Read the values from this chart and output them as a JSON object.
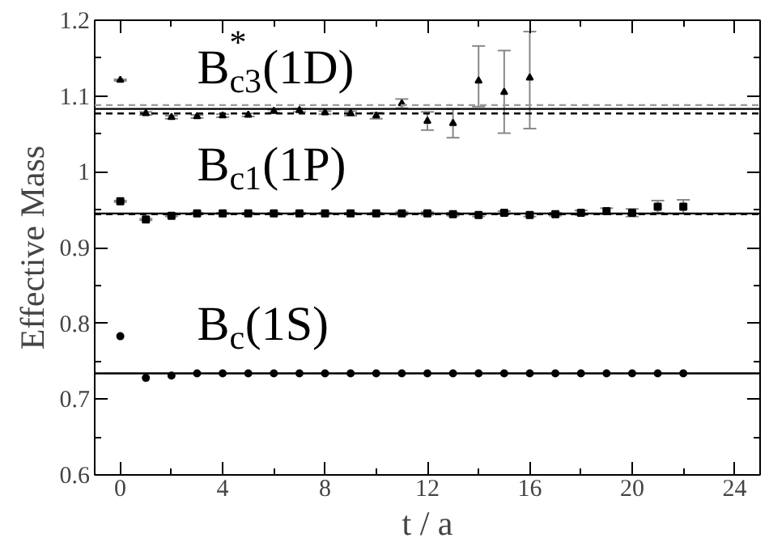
{
  "chart_data": {
    "type": "scatter",
    "xlabel": "t / a",
    "ylabel": "Effective Mass",
    "xlim": [
      -1,
      25
    ],
    "ylim": [
      0.6,
      1.2
    ],
    "xticks": [
      0,
      4,
      8,
      12,
      16,
      20,
      24
    ],
    "yticks": [
      0.6,
      0.7,
      0.8,
      0.9,
      1,
      1.1,
      1.2
    ],
    "grid": false,
    "series": [
      {
        "color": "#000000",
        "marker": "triangle",
        "x": [
          0,
          1,
          2,
          3,
          4,
          5,
          6,
          7,
          8,
          9,
          10,
          11,
          12,
          13,
          14,
          15,
          16
        ],
        "values": [
          1.121,
          1.077,
          1.072,
          1.073,
          1.074,
          1.075,
          1.08,
          1.081,
          1.078,
          1.077,
          1.074,
          1.09,
          1.067,
          1.064,
          1.12,
          1.105,
          1.124
        ],
        "errors": [
          0.001,
          0.002,
          0.002,
          0.002,
          0.002,
          0.002,
          0.002,
          0.002,
          0.002,
          0.003,
          0.004,
          0.006,
          0.012,
          0.019,
          [
            1.086,
            1.166
          ],
          [
            1.051,
            1.16
          ],
          [
            1.057,
            1.185
          ]
        ]
      },
      {
        "color": "#000000",
        "marker": "square",
        "x": [
          0,
          1,
          2,
          3,
          4,
          5,
          6,
          7,
          8,
          9,
          10,
          11,
          12,
          13,
          14,
          15,
          16,
          17,
          18,
          19,
          20,
          21,
          22
        ],
        "values": [
          0.961,
          0.937,
          0.942,
          0.945,
          0.945,
          0.945,
          0.945,
          0.945,
          0.945,
          0.945,
          0.945,
          0.945,
          0.945,
          0.944,
          0.943,
          0.946,
          0.943,
          0.944,
          0.946,
          0.948,
          0.946,
          0.954,
          0.954
        ],
        "errors": [
          0.001,
          0.001,
          0.001,
          0.001,
          0.001,
          0.001,
          0.001,
          0.001,
          0.001,
          0.001,
          0.001,
          0.002,
          0.002,
          0.002,
          0.002,
          0.002,
          0.002,
          0.002,
          0.003,
          0.004,
          0.005,
          0.008,
          0.009
        ]
      },
      {
        "color": "#000000",
        "marker": "circle",
        "x": [
          0,
          1,
          2,
          3,
          4,
          5,
          6,
          7,
          8,
          9,
          10,
          11,
          12,
          13,
          14,
          15,
          16,
          17,
          18,
          19,
          20,
          21,
          22
        ],
        "values": [
          0.783,
          0.728,
          0.731,
          0.734,
          0.734,
          0.734,
          0.734,
          0.734,
          0.734,
          0.734,
          0.734,
          0.734,
          0.734,
          0.734,
          0.734,
          0.734,
          0.734,
          0.734,
          0.734,
          0.734,
          0.734,
          0.734,
          0.734
        ]
      }
    ],
    "ref_lines": [
      {
        "axis": "y",
        "value": 1.083,
        "color": "#000000",
        "line_style": "solid"
      },
      {
        "axis": "y",
        "value": 1.088,
        "color": "#999999",
        "line_style": "dashed"
      },
      {
        "axis": "y",
        "value": 1.077,
        "color": "#000000",
        "line_style": "dashed"
      },
      {
        "axis": "y",
        "value": 0.945,
        "color": "#000000",
        "line_style": "solid"
      },
      {
        "axis": "y",
        "value": 0.944,
        "color": "#000000",
        "line_style": "dashed"
      },
      {
        "axis": "y",
        "value": 0.734,
        "color": "#000000",
        "line_style": "solid"
      }
    ],
    "annotations": [
      "B$_{c3}$$^{*}$(1D)",
      "B$_{c1}$(1P)",
      "B$_{c}$(1S)"
    ]
  }
}
